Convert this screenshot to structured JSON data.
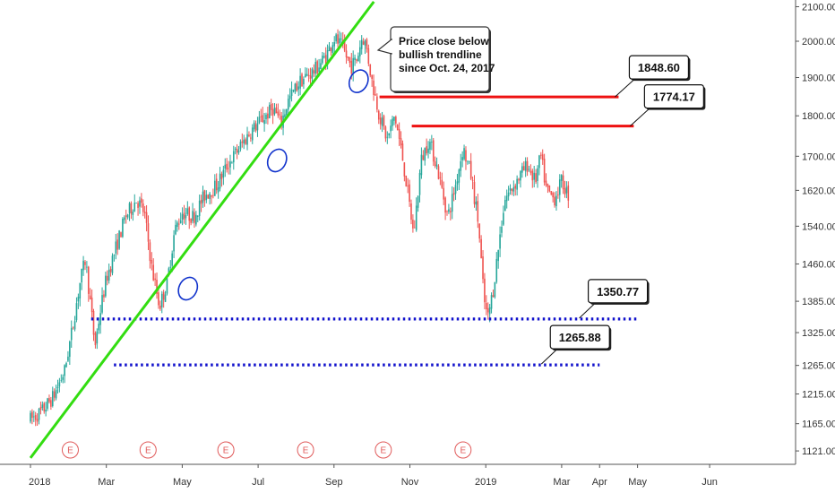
{
  "chart_data": {
    "type": "candlestick",
    "title": "",
    "xlabel": "",
    "ylabel": "",
    "x_ticks": [
      "2018",
      "Mar",
      "May",
      "Jul",
      "Sep",
      "Nov",
      "2019",
      "Mar",
      "Apr",
      "May",
      "Jun"
    ],
    "x_tick_months": [
      0,
      2,
      4,
      6,
      8,
      10,
      12,
      14,
      15,
      16,
      17.9
    ],
    "y_ticks": [
      "2100.00",
      "2000.00",
      "1900.00",
      "1800.00",
      "1700.00",
      "1620.00",
      "1540.00",
      "1460.00",
      "1385.00",
      "1325.00",
      "1265.00",
      "1215.00",
      "1165.00",
      "1121.00"
    ],
    "y_axis_scale": "log",
    "ylim": [
      1100,
      2120
    ],
    "colors": {
      "up": "#26a69a",
      "down": "#ef5350",
      "trendline": "#33dd11",
      "resistance": "#ee1111",
      "support": "#1111cc",
      "earnings": "#e05a5a"
    },
    "price_path": [
      [
        0.0,
        1172
      ],
      [
        0.3,
        1185
      ],
      [
        0.6,
        1210
      ],
      [
        0.9,
        1255
      ],
      [
        1.1,
        1330
      ],
      [
        1.3,
        1420
      ],
      [
        1.45,
        1470
      ],
      [
        1.55,
        1400
      ],
      [
        1.7,
        1300
      ],
      [
        1.85,
        1370
      ],
      [
        2.0,
        1430
      ],
      [
        2.2,
        1480
      ],
      [
        2.5,
        1560
      ],
      [
        2.8,
        1600
      ],
      [
        3.0,
        1570
      ],
      [
        3.2,
        1450
      ],
      [
        3.4,
        1375
      ],
      [
        3.6,
        1420
      ],
      [
        3.8,
        1530
      ],
      [
        4.0,
        1570
      ],
      [
        4.3,
        1560
      ],
      [
        4.6,
        1610
      ],
      [
        4.9,
        1630
      ],
      [
        5.2,
        1680
      ],
      [
        5.5,
        1720
      ],
      [
        5.8,
        1760
      ],
      [
        6.1,
        1790
      ],
      [
        6.4,
        1820
      ],
      [
        6.6,
        1780
      ],
      [
        6.8,
        1840
      ],
      [
        7.1,
        1890
      ],
      [
        7.5,
        1920
      ],
      [
        7.8,
        1960
      ],
      [
        8.0,
        2010
      ],
      [
        8.2,
        1985
      ],
      [
        8.45,
        1930
      ],
      [
        8.6,
        1950
      ],
      [
        8.75,
        2015
      ],
      [
        8.85,
        1985
      ],
      [
        9.0,
        1890
      ],
      [
        9.2,
        1800
      ],
      [
        9.4,
        1740
      ],
      [
        9.6,
        1800
      ],
      [
        9.8,
        1700
      ],
      [
        10.1,
        1520
      ],
      [
        10.3,
        1690
      ],
      [
        10.5,
        1740
      ],
      [
        10.7,
        1680
      ],
      [
        11.0,
        1560
      ],
      [
        11.2,
        1630
      ],
      [
        11.4,
        1720
      ],
      [
        11.6,
        1660
      ],
      [
        11.8,
        1550
      ],
      [
        11.95,
        1390
      ],
      [
        12.05,
        1350
      ],
      [
        12.2,
        1410
      ],
      [
        12.5,
        1600
      ],
      [
        12.8,
        1640
      ],
      [
        13.1,
        1680
      ],
      [
        13.3,
        1640
      ],
      [
        13.45,
        1700
      ],
      [
        13.6,
        1620
      ],
      [
        13.8,
        1600
      ],
      [
        14.0,
        1640
      ],
      [
        14.2,
        1605
      ]
    ],
    "trendline": {
      "start": [
        0.0,
        1110
      ],
      "end": [
        9.05,
        2115
      ]
    },
    "trendline_touches": [
      [
        4.15,
        1410
      ],
      [
        6.5,
        1690
      ],
      [
        8.65,
        1890
      ]
    ],
    "resistance_levels": [
      {
        "value": 1848.6,
        "label": "1848.60",
        "x_start": 9.2,
        "x_end": 15.5
      },
      {
        "value": 1774.17,
        "label": "1774.17",
        "x_start": 10.05,
        "x_end": 15.9
      }
    ],
    "support_levels": [
      {
        "value": 1350.77,
        "label": "1350.77",
        "x_start": 1.6,
        "x_end": 16.0
      },
      {
        "value": 1265.88,
        "label": "1265.88",
        "x_start": 2.2,
        "x_end": 15.0
      }
    ],
    "earnings_markers": {
      "label": "E",
      "months": [
        1.05,
        3.1,
        5.15,
        7.25,
        9.3,
        11.4
      ]
    },
    "annotations": [
      {
        "lines": [
          "Price close below",
          "bullish trendline",
          "since Oct. 24, 2017"
        ]
      }
    ]
  }
}
